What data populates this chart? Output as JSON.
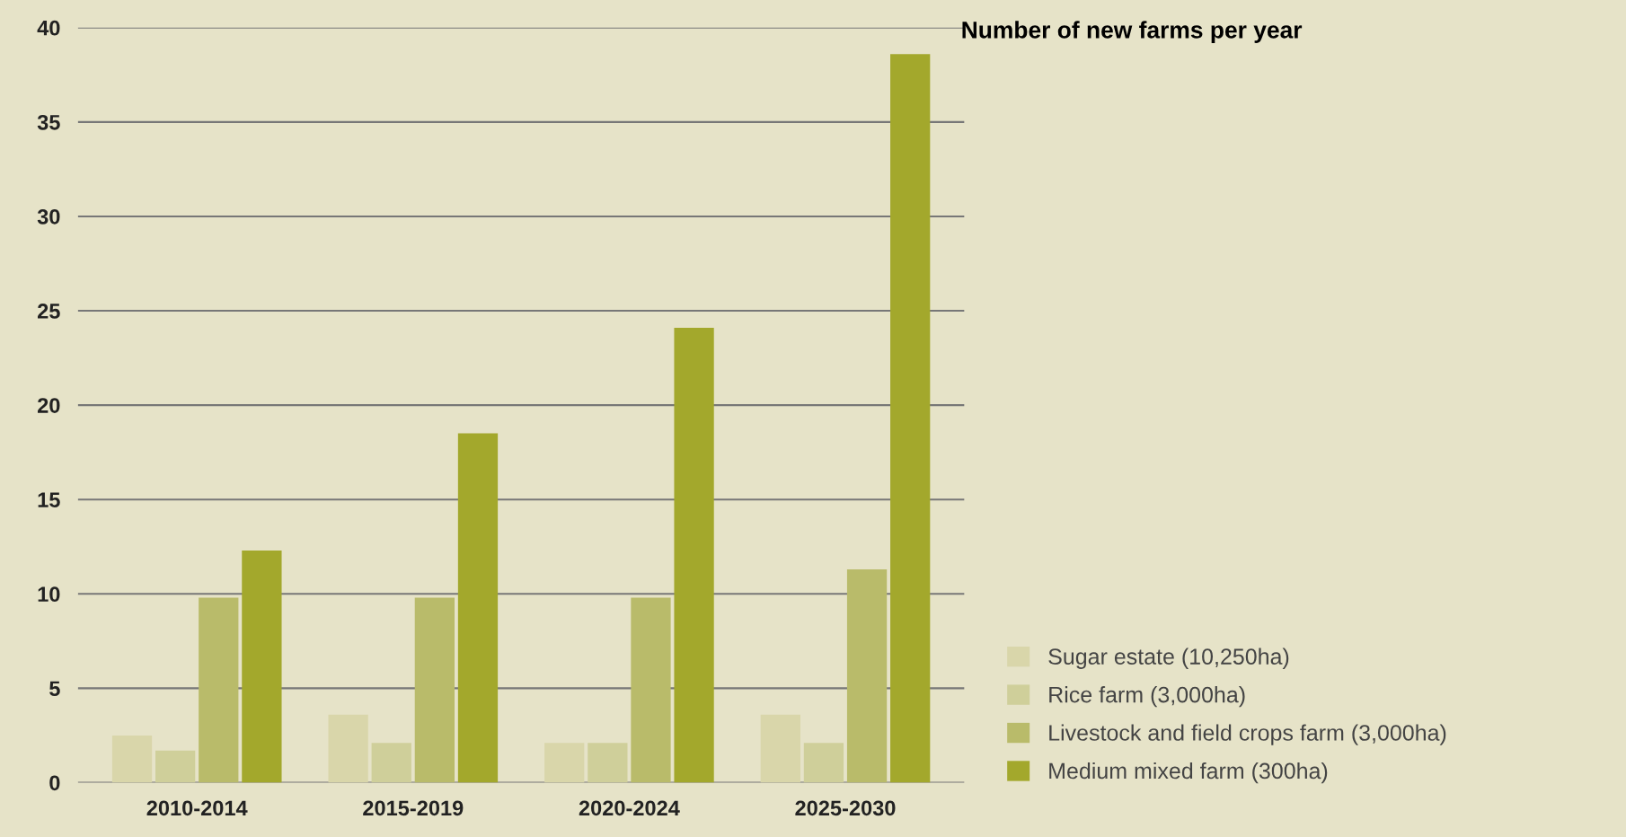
{
  "chart_data": {
    "type": "bar",
    "title": "Number of new farms per year",
    "categories": [
      "2010-2014",
      "2015-2019",
      "2020-2024",
      "2025-2030"
    ],
    "series": [
      {
        "name": "Sugar estate (10,250ha)",
        "color": "#d9d6aa",
        "values": [
          2.5,
          3.6,
          2.1,
          3.6
        ]
      },
      {
        "name": "Rice farm (3,000ha)",
        "color": "#cfcf9a",
        "values": [
          1.7,
          2.1,
          2.1,
          2.1
        ]
      },
      {
        "name": "Livestock and field crops farm (3,000ha)",
        "color": "#b9bb6a",
        "values": [
          9.8,
          9.8,
          9.8,
          11.3
        ]
      },
      {
        "name": "Medium mixed farm (300ha)",
        "color": "#a3a82c",
        "values": [
          12.3,
          18.5,
          24.1,
          38.6
        ]
      }
    ],
    "ylim": [
      0,
      40
    ],
    "yticks": [
      0,
      5,
      10,
      15,
      20,
      25,
      30,
      35,
      40
    ],
    "grid": "y",
    "legend": "bottom right"
  }
}
